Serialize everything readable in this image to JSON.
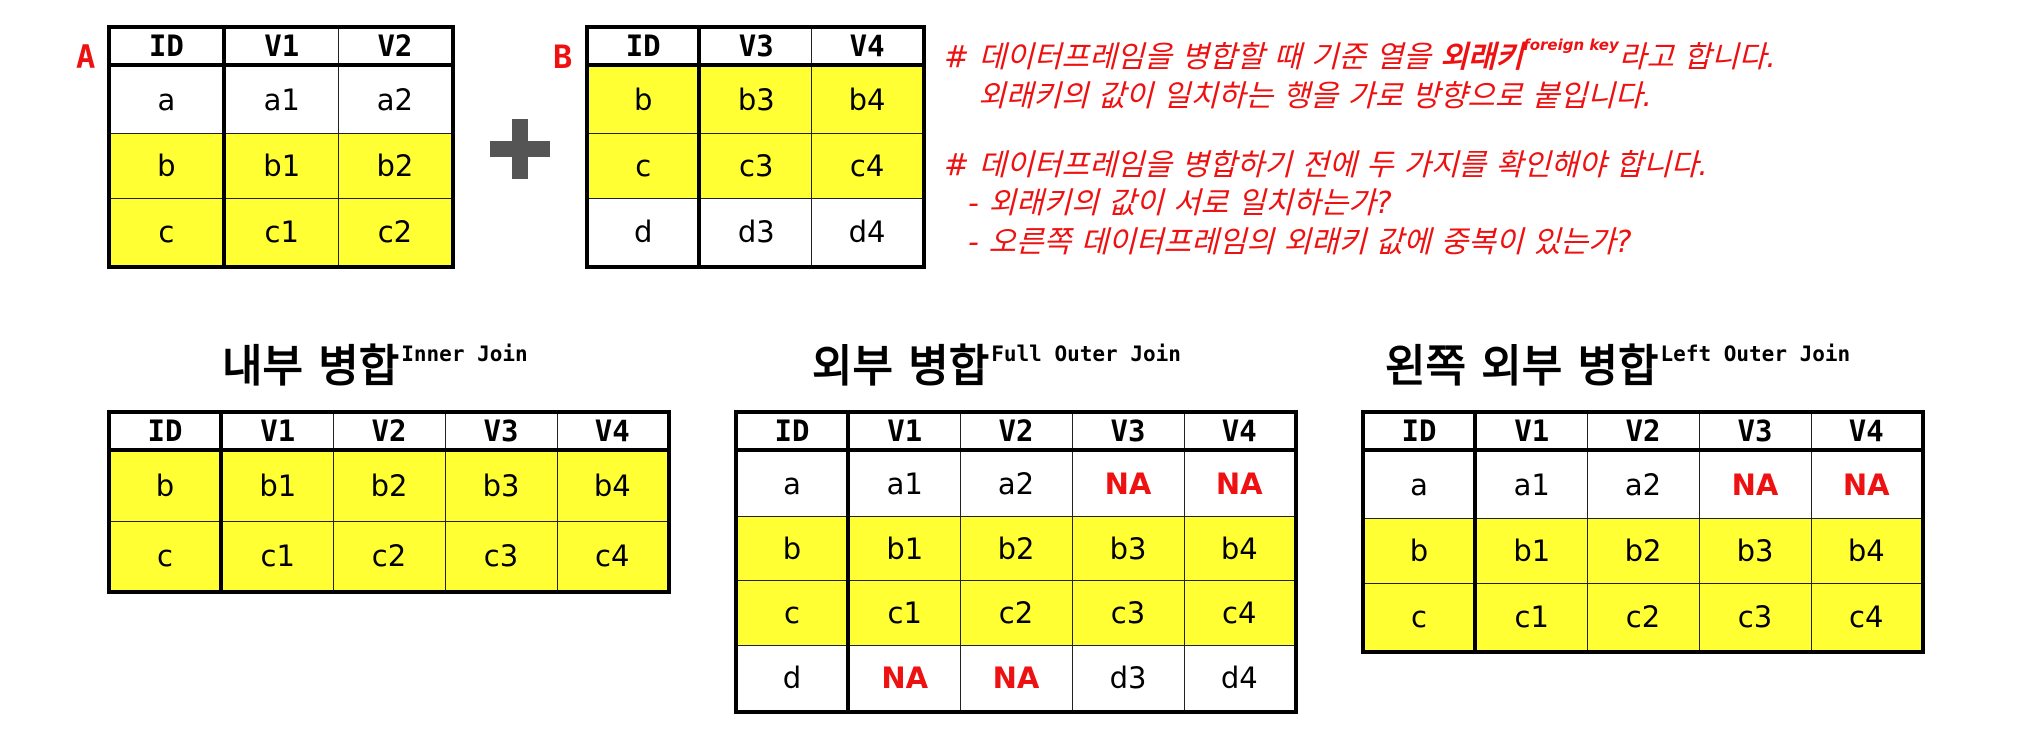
{
  "colors": {
    "highlight": "#ffff33",
    "accent_red": "#ee1111",
    "plus_gray": "#555555"
  },
  "icons": {
    "plus": "plus-icon"
  },
  "table_a": {
    "label": "A",
    "headers": [
      "ID",
      "V1",
      "V2"
    ],
    "rows": [
      {
        "cells": [
          "a",
          "a1",
          "a2"
        ],
        "hl": false
      },
      {
        "cells": [
          "b",
          "b1",
          "b2"
        ],
        "hl": true
      },
      {
        "cells": [
          "c",
          "c1",
          "c2"
        ],
        "hl": true
      }
    ]
  },
  "table_b": {
    "label": "B",
    "headers": [
      "ID",
      "V3",
      "V4"
    ],
    "rows": [
      {
        "cells": [
          "b",
          "b3",
          "b4"
        ],
        "hl": true
      },
      {
        "cells": [
          "c",
          "c3",
          "c4"
        ],
        "hl": true
      },
      {
        "cells": [
          "d",
          "d3",
          "d4"
        ],
        "hl": false
      }
    ]
  },
  "notes": {
    "line1_prefix": "# 데이터프레임을 병합할 때 기준 열을 ",
    "line1_bold": "외래키",
    "line1_sup": "foreign key",
    "line1_suffix": "라고 합니다.",
    "line2": "외래키의 값이 일치하는 행을 가로 방향으로 붙입니다.",
    "line3": "# 데이터프레임을 병합하기 전에 두 가지를 확인해야 합니다.",
    "line4": "- 외래키의 값이 서로 일치하는가?",
    "line5": "- 오른쪽 데이터프레임의 외래키 값에 중복이 있는가?"
  },
  "inner": {
    "title": "내부 병합",
    "title_en": "Inner Join",
    "headers": [
      "ID",
      "V1",
      "V2",
      "V3",
      "V4"
    ],
    "rows": [
      {
        "cells": [
          "b",
          "b1",
          "b2",
          "b3",
          "b4"
        ],
        "hl": true
      },
      {
        "cells": [
          "c",
          "c1",
          "c2",
          "c3",
          "c4"
        ],
        "hl": true
      }
    ]
  },
  "outer": {
    "title": "외부 병합",
    "title_en": "Full Outer Join",
    "headers": [
      "ID",
      "V1",
      "V2",
      "V3",
      "V4"
    ],
    "rows": [
      {
        "cells": [
          "a",
          "a1",
          "a2",
          "NA",
          "NA"
        ],
        "hl": false
      },
      {
        "cells": [
          "b",
          "b1",
          "b2",
          "b3",
          "b4"
        ],
        "hl": true
      },
      {
        "cells": [
          "c",
          "c1",
          "c2",
          "c3",
          "c4"
        ],
        "hl": true
      },
      {
        "cells": [
          "d",
          "NA",
          "NA",
          "d3",
          "d4"
        ],
        "hl": false
      }
    ]
  },
  "left": {
    "title": "왼쪽 외부 병합",
    "title_en": "Left Outer Join",
    "headers": [
      "ID",
      "V1",
      "V2",
      "V3",
      "V4"
    ],
    "rows": [
      {
        "cells": [
          "a",
          "a1",
          "a2",
          "NA",
          "NA"
        ],
        "hl": false
      },
      {
        "cells": [
          "b",
          "b1",
          "b2",
          "b3",
          "b4"
        ],
        "hl": true
      },
      {
        "cells": [
          "c",
          "c1",
          "c2",
          "c3",
          "c4"
        ],
        "hl": true
      }
    ]
  }
}
